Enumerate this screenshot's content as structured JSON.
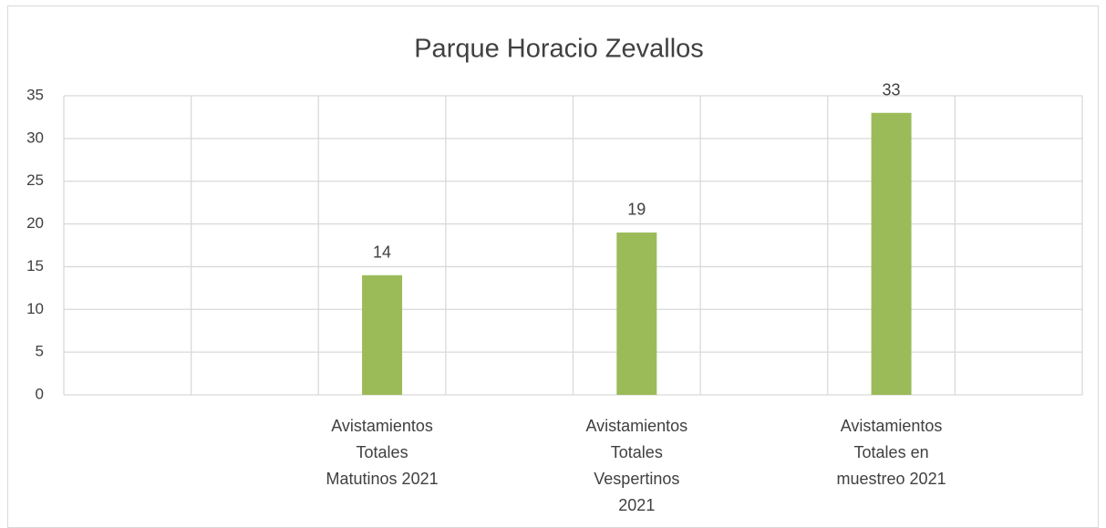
{
  "chart_data": {
    "type": "bar",
    "title": "Parque Horacio Zevallos",
    "categories": [
      null,
      null,
      "Avistamientos Totales Matutinos 2021",
      null,
      "Avistamientos Totales Vespertinos 2021",
      null,
      "Avistamientos Totales en muestreo 2021",
      null
    ],
    "values": [
      null,
      null,
      14,
      null,
      19,
      null,
      33,
      null
    ],
    "color": "#9bbb59",
    "ylim": [
      0,
      35
    ],
    "yticks": [
      0,
      5,
      10,
      15,
      20,
      25,
      30,
      35
    ],
    "grid": true
  }
}
